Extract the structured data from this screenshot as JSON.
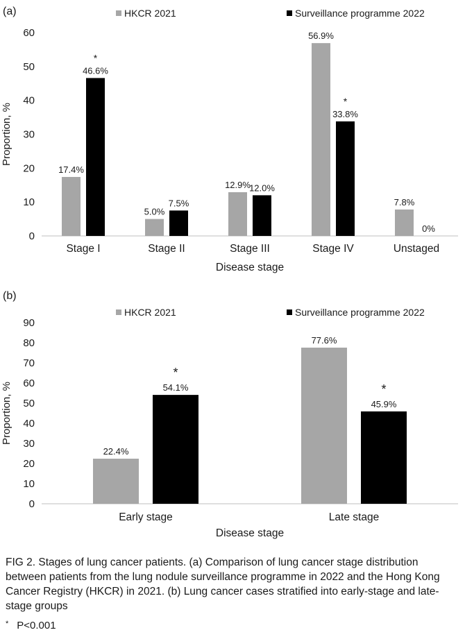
{
  "chart_data": [
    {
      "type": "bar",
      "panel_label": "(a)",
      "categories": [
        "Stage I",
        "Stage II",
        "Stage III",
        "Stage IV",
        "Unstaged"
      ],
      "series": [
        {
          "name": "HKCR 2021",
          "values": [
            17.4,
            5.0,
            12.9,
            56.9,
            7.8
          ],
          "labels": [
            "17.4%",
            "5.0%",
            "12.9%",
            "56.9%",
            "7.8%"
          ],
          "color": "#a6a6a6"
        },
        {
          "name": "Surveillance programme 2022",
          "values": [
            46.6,
            7.5,
            12.0,
            33.8,
            0
          ],
          "labels": [
            "46.6%",
            "7.5%",
            "12.0%",
            "33.8%",
            "0%"
          ],
          "color": "#000000"
        }
      ],
      "significant": [
        {
          "series": 1,
          "index": 0
        },
        {
          "series": 1,
          "index": 3
        }
      ],
      "significance_marker": "*",
      "xlabel": "Disease stage",
      "ylabel": "Proportion, %",
      "ylim": [
        0,
        60
      ],
      "yticks": [
        0,
        10,
        20,
        30,
        40,
        50,
        60
      ],
      "grid": false,
      "legend": "top"
    },
    {
      "type": "bar",
      "panel_label": "(b)",
      "categories": [
        "Early stage",
        "Late stage"
      ],
      "series": [
        {
          "name": "HKCR 2021",
          "values": [
            22.4,
            77.6
          ],
          "labels": [
            "22.4%",
            "77.6%"
          ],
          "color": "#a6a6a6"
        },
        {
          "name": "Surveillance programme 2022",
          "values": [
            54.1,
            45.9
          ],
          "labels": [
            "54.1%",
            "45.9%"
          ],
          "color": "#000000"
        }
      ],
      "significant": [
        {
          "series": 1,
          "index": 0
        },
        {
          "series": 1,
          "index": 1
        }
      ],
      "significance_marker": "*",
      "xlabel": "Disease stage",
      "ylabel": "Proportion, %",
      "ylim": [
        0,
        90
      ],
      "yticks": [
        0,
        10,
        20,
        30,
        40,
        50,
        60,
        70,
        80,
        90
      ],
      "grid": false,
      "legend": "top"
    }
  ],
  "caption": "FIG 2. Stages of lung cancer patients. (a) Comparison of lung cancer stage distribution between patients from the lung nodule surveillance programme in 2022 and the Hong Kong Cancer Registry (HKCR) in 2021. (b) Lung cancer cases stratified into early-stage and late-stage groups",
  "footnote": {
    "marker": "*",
    "text": "P<0.001"
  }
}
